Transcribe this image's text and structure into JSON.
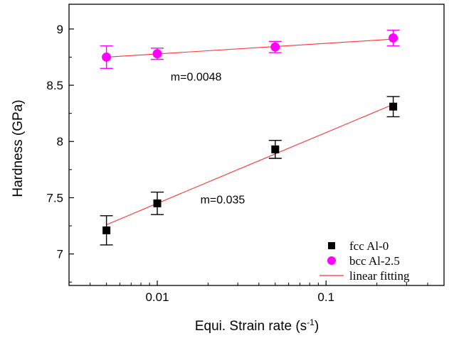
{
  "chart_data": {
    "type": "scatter",
    "xlabel_main": "Equi. Strain rate (s",
    "xlabel_sup": "-1",
    "xlabel_close": ")",
    "ylabel": "Hardness (GPa)",
    "xscale": "log",
    "xlim": [
      0.003,
      0.5
    ],
    "ylim": [
      6.72,
      9.22
    ],
    "x_ticks": [
      0.01,
      0.1
    ],
    "x_tick_labels": [
      "0.01",
      "0.1"
    ],
    "y_ticks": [
      7,
      7.5,
      8,
      8.5,
      9
    ],
    "y_tick_labels": [
      "7",
      "7.5",
      "8",
      "8.5",
      "9"
    ],
    "grid": false,
    "legend_position": "bottom-right",
    "series": [
      {
        "name": "fcc Al-0",
        "marker": "square",
        "color": "#000000",
        "x": [
          0.005,
          0.01,
          0.05,
          0.25
        ],
        "y": [
          7.21,
          7.45,
          7.93,
          8.31
        ],
        "err": [
          0.13,
          0.1,
          0.08,
          0.09
        ]
      },
      {
        "name": "bcc Al-2.5",
        "marker": "circle",
        "color": "#ff00ff",
        "x": [
          0.005,
          0.01,
          0.05,
          0.25
        ],
        "y": [
          8.75,
          8.78,
          8.84,
          8.92
        ],
        "err": [
          0.1,
          0.05,
          0.05,
          0.07
        ]
      }
    ],
    "fits": [
      {
        "name": "linear fitting",
        "color": "#ff3333",
        "x": [
          0.005,
          0.25
        ],
        "y": [
          7.26,
          8.33
        ]
      },
      {
        "name": "linear fitting",
        "color": "#ff3333",
        "x": [
          0.005,
          0.25
        ],
        "y": [
          8.75,
          8.91
        ]
      }
    ],
    "annotations": [
      {
        "text": "m=0.0048",
        "x": 0.012,
        "y": 8.54
      },
      {
        "text": "m=0.035",
        "x": 0.018,
        "y": 7.45
      }
    ],
    "legend_fit_label": "linear fitting"
  }
}
